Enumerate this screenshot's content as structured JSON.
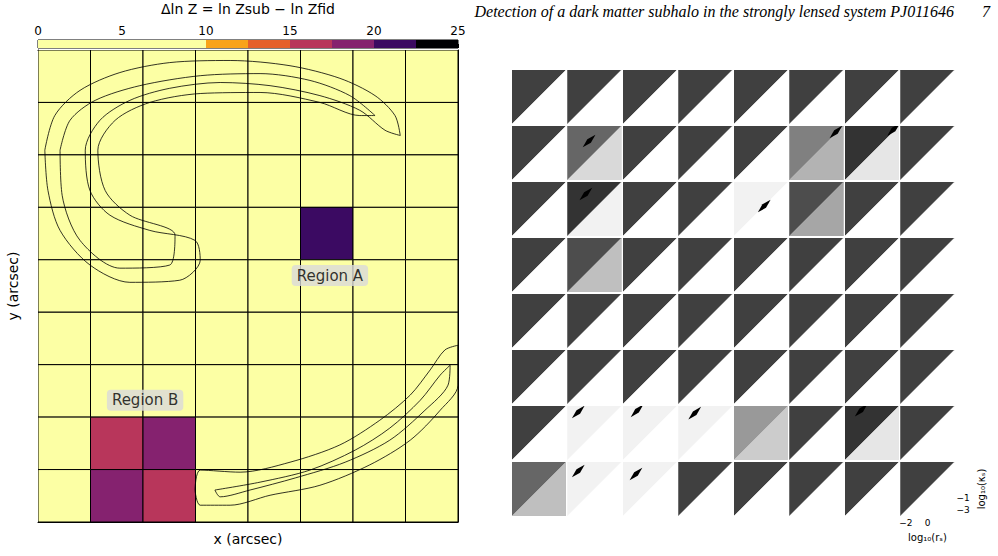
{
  "header": {
    "title": "Detection of a dark matter subhalo in the strongly lensed system PJ011646",
    "page": 7
  },
  "chart_data": [
    {
      "type": "heatmap",
      "xlabel": "x (arcsec)",
      "ylabel": "y (arcsec)",
      "xlim": [
        0,
        8
      ],
      "ylim": [
        0,
        9
      ],
      "xticks": [
        0,
        1,
        2,
        3,
        4,
        5,
        6,
        7,
        8
      ],
      "yticks": [
        0,
        1,
        2,
        3,
        4,
        5,
        6,
        7,
        8,
        9
      ],
      "grid": true,
      "tick_labels": false,
      "cells": [
        [
          0,
          0,
          0,
          0,
          0,
          0,
          0,
          0
        ],
        [
          0,
          0,
          0,
          0,
          0,
          0,
          0,
          0
        ],
        [
          0,
          0,
          0,
          0,
          0,
          0,
          0,
          0
        ],
        [
          0,
          0,
          0,
          0,
          0,
          21,
          0,
          0
        ],
        [
          0,
          0,
          0,
          0,
          0,
          0,
          0,
          0
        ],
        [
          0,
          0,
          0,
          0,
          0,
          0,
          0,
          0
        ],
        [
          0,
          0,
          0,
          0,
          0,
          0,
          0,
          0
        ],
        [
          0,
          16,
          19,
          0,
          0,
          0,
          0,
          0
        ],
        [
          0,
          19,
          16,
          0,
          0,
          0,
          0,
          0
        ]
      ],
      "colorbar": {
        "label": "Δln Z = ln Zsub − ln Zfid",
        "range": [
          0,
          25
        ],
        "ticks": [
          0,
          5,
          10,
          15,
          20,
          25
        ],
        "bounds": [
          0,
          10,
          12.5,
          15,
          17.5,
          20,
          22.5,
          25
        ],
        "colors": [
          "#fcffa4",
          "#f9a31a",
          "#e5602b",
          "#b8365b",
          "#85226f",
          "#3b0a62",
          "#000004"
        ]
      },
      "contours": [
        [
          [
            0.13,
            7.09
          ],
          [
            0.32,
            7.75
          ],
          [
            0.8,
            8.23
          ],
          [
            1.56,
            8.57
          ],
          [
            2.51,
            8.76
          ],
          [
            3.66,
            8.8
          ],
          [
            4.8,
            8.7
          ],
          [
            5.75,
            8.46
          ],
          [
            6.42,
            8.13
          ],
          [
            6.8,
            7.75
          ],
          [
            6.9,
            7.37
          ],
          [
            6.61,
            7.47
          ],
          [
            6.13,
            7.85
          ],
          [
            5.37,
            8.13
          ],
          [
            4.42,
            8.32
          ],
          [
            3.47,
            8.38
          ],
          [
            2.51,
            8.27
          ],
          [
            1.75,
            8.04
          ],
          [
            1.18,
            7.66
          ],
          [
            0.9,
            7.09
          ],
          [
            0.99,
            6.32
          ],
          [
            1.37,
            5.85
          ],
          [
            2.13,
            5.56
          ],
          [
            2.99,
            5.37
          ],
          [
            3.09,
            4.99
          ],
          [
            2.7,
            4.61
          ],
          [
            1.75,
            4.57
          ],
          [
            0.99,
            4.9
          ],
          [
            0.42,
            5.56
          ],
          [
            0.19,
            6.32
          ]
        ],
        [
          [
            0.42,
            7.09
          ],
          [
            0.61,
            7.66
          ],
          [
            1.09,
            8.04
          ],
          [
            1.94,
            8.32
          ],
          [
            3.09,
            8.51
          ],
          [
            4.23,
            8.55
          ],
          [
            5.18,
            8.42
          ],
          [
            5.94,
            8.13
          ],
          [
            6.42,
            7.75
          ],
          [
            6.13,
            7.75
          ],
          [
            5.37,
            8.0
          ],
          [
            4.23,
            8.19
          ],
          [
            3.09,
            8.17
          ],
          [
            2.13,
            8.0
          ],
          [
            1.47,
            7.66
          ],
          [
            1.14,
            7.09
          ],
          [
            1.28,
            6.32
          ],
          [
            1.75,
            5.85
          ],
          [
            2.61,
            5.47
          ],
          [
            2.51,
            4.9
          ],
          [
            1.56,
            4.84
          ],
          [
            0.8,
            5.37
          ],
          [
            0.46,
            6.23
          ]
        ],
        [
          [
            2.99,
            0.61
          ],
          [
            3.09,
            0.99
          ],
          [
            3.85,
            0.95
          ],
          [
            4.8,
            1.14
          ],
          [
            5.75,
            1.47
          ],
          [
            6.51,
            1.94
          ],
          [
            7.09,
            2.42
          ],
          [
            7.47,
            2.9
          ],
          [
            7.75,
            3.28
          ],
          [
            8.0,
            3.37
          ],
          [
            8.0,
            2.61
          ],
          [
            7.66,
            2.13
          ],
          [
            7.09,
            1.56
          ],
          [
            6.32,
            1.09
          ],
          [
            5.37,
            0.7
          ],
          [
            4.42,
            0.51
          ],
          [
            3.66,
            0.32
          ],
          [
            3.09,
            0.32
          ]
        ],
        [
          [
            3.37,
            0.61
          ],
          [
            4.23,
            0.76
          ],
          [
            5.18,
            0.99
          ],
          [
            6.04,
            1.37
          ],
          [
            6.7,
            1.79
          ],
          [
            7.28,
            2.32
          ],
          [
            7.66,
            2.8
          ],
          [
            7.85,
            2.99
          ],
          [
            7.81,
            2.61
          ],
          [
            7.37,
            2.13
          ],
          [
            6.7,
            1.56
          ],
          [
            5.85,
            1.14
          ],
          [
            4.9,
            0.84
          ],
          [
            4.04,
            0.61
          ],
          [
            3.47,
            0.48
          ]
        ]
      ],
      "annotations": [
        {
          "text": "Region A",
          "x": 5.56,
          "y": 4.7
        },
        {
          "text": "Region B",
          "x": 2.04,
          "y": 2.32
        }
      ]
    },
    {
      "type": "image_grid",
      "xlabel": "log₁₀(rₛ)",
      "ylabel": "log₁₀(κₛ)",
      "xlim": [
        -2.5,
        2.5
      ],
      "ylim": [
        -4,
        5
      ],
      "xticks": [
        {
          "value": -2,
          "label": "−2"
        },
        0
      ],
      "yticks": [
        {
          "value": -1,
          "label": "−1"
        },
        {
          "value": -3,
          "label": "−3"
        }
      ],
      "density_range": [
        0,
        1
      ],
      "cells": [
        [
          {
            "upper": 0.75,
            "lower": 0
          },
          {
            "upper": 0.75,
            "lower": 0
          },
          {
            "upper": 0.75,
            "lower": 0
          },
          {
            "upper": 0.75,
            "lower": 0
          },
          {
            "upper": 0.75,
            "lower": 0
          },
          {
            "upper": 0.75,
            "lower": 0
          },
          {
            "upper": 0.75,
            "lower": 0
          },
          {
            "upper": 0.75,
            "lower": 0
          }
        ],
        [
          {
            "upper": 0.75,
            "lower": 0
          },
          {
            "upper": 0.6,
            "lower": 0.15,
            "peak": [
              -0.5,
              2.5
            ]
          },
          {
            "upper": 0.75,
            "lower": 0
          },
          {
            "upper": 0.75,
            "lower": 0
          },
          {
            "upper": 0.75,
            "lower": 0
          },
          {
            "upper": 0.5,
            "lower": 0.3,
            "peak": [
              1.8,
              4
            ]
          },
          {
            "upper": 0.8,
            "lower": 0.1,
            "peak": [
              2,
              4.4
            ]
          },
          {
            "upper": 0.75,
            "lower": 0
          }
        ],
        [
          {
            "upper": 0.75,
            "lower": 0
          },
          {
            "upper": 0.8,
            "lower": 0.05,
            "peak": [
              -0.8,
              3
            ]
          },
          {
            "upper": 0.75,
            "lower": 0
          },
          {
            "upper": 0.75,
            "lower": 0
          },
          {
            "upper": 0.05,
            "lower": 0,
            "peak": [
              0.3,
              1
            ]
          },
          {
            "upper": 0.7,
            "lower": 0.35
          },
          {
            "upper": 0.75,
            "lower": 0
          },
          {
            "upper": 0.75,
            "lower": 0
          }
        ],
        [
          {
            "upper": 0.75,
            "lower": 0
          },
          {
            "upper": 0.7,
            "lower": 0.25
          },
          {
            "upper": 0.75,
            "lower": 0
          },
          {
            "upper": 0.75,
            "lower": 0
          },
          {
            "upper": 0.75,
            "lower": 0
          },
          {
            "upper": 0.75,
            "lower": 0
          },
          {
            "upper": 0.75,
            "lower": 0
          },
          {
            "upper": 0.75,
            "lower": 0
          }
        ],
        [
          {
            "upper": 0.75,
            "lower": 0
          },
          {
            "upper": 0.75,
            "lower": 0
          },
          {
            "upper": 0.75,
            "lower": 0
          },
          {
            "upper": 0.75,
            "lower": 0
          },
          {
            "upper": 0.75,
            "lower": 0
          },
          {
            "upper": 0.75,
            "lower": 0
          },
          {
            "upper": 0.75,
            "lower": 0
          },
          {
            "upper": 0.75,
            "lower": 0
          }
        ],
        [
          {
            "upper": 0.75,
            "lower": 0
          },
          {
            "upper": 0.75,
            "lower": 0
          },
          {
            "upper": 0.75,
            "lower": 0
          },
          {
            "upper": 0.75,
            "lower": 0
          },
          {
            "upper": 0.75,
            "lower": 0
          },
          {
            "upper": 0.75,
            "lower": 0
          },
          {
            "upper": 0.75,
            "lower": 0
          },
          {
            "upper": 0.75,
            "lower": 0
          }
        ],
        [
          {
            "upper": 0.75,
            "lower": 0
          },
          {
            "upper": 0.05,
            "lower": 0,
            "peak": [
              -1.5,
              4
            ]
          },
          {
            "upper": 0.05,
            "lower": 0,
            "peak": [
              -1.2,
              4.2
            ]
          },
          {
            "upper": 0.05,
            "lower": 0,
            "peak": [
              -1,
              3.8
            ]
          },
          {
            "upper": 0.4,
            "lower": 0.2
          },
          {
            "upper": 0.75,
            "lower": 0
          },
          {
            "upper": 0.8,
            "lower": 0.1,
            "peak": [
              -1,
              4.3
            ]
          },
          {
            "upper": 0.75,
            "lower": 0
          }
        ],
        [
          {
            "upper": 0.6,
            "lower": 0.25
          },
          {
            "upper": 0.05,
            "lower": 0,
            "peak": [
              -1.5,
              3.5
            ]
          },
          {
            "upper": 0.05,
            "lower": 0,
            "peak": [
              -1.3,
              3
            ]
          },
          {
            "upper": 0.75,
            "lower": 0
          },
          {
            "upper": 0.75,
            "lower": 0
          },
          {
            "upper": 0.75,
            "lower": 0
          },
          {
            "upper": 0.75,
            "lower": 0
          },
          {
            "upper": 0.75,
            "lower": 0
          }
        ]
      ]
    }
  ]
}
